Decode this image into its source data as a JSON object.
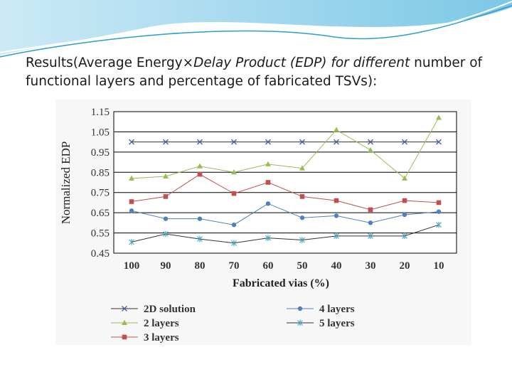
{
  "slide": {
    "title_part1": "Results(Average Energy×",
    "title_italic": "Delay Product (EDP) for different",
    "title_part2": " number of functional  layers and percentage of fabricated TSVs):"
  },
  "colors": {
    "header_light": "#cdeaf6",
    "header_mid": "#7cc8e6",
    "header_dark": "#1b8fbf"
  },
  "chart_data": {
    "type": "line",
    "xlabel": "Fabricated vias (%)",
    "ylabel": "Normalized EDP",
    "categories": [
      "100",
      "90",
      "80",
      "70",
      "60",
      "50",
      "40",
      "30",
      "20",
      "10"
    ],
    "ylim": [
      0.45,
      1.15
    ],
    "yticks": [
      "1.15",
      "1.05",
      "0.95",
      "0.85",
      "0.75",
      "0.65",
      "0.55",
      "0.45"
    ],
    "grid": true,
    "legend_position": "bottom",
    "series": [
      {
        "name": "2D solution",
        "color": "#4a5f9e",
        "marker": "x",
        "values": [
          1.0,
          1.0,
          1.0,
          1.0,
          1.0,
          1.0,
          1.0,
          1.0,
          1.0,
          1.0
        ]
      },
      {
        "name": "2 layers",
        "color": "#9bbb59",
        "marker": "triangle",
        "values": [
          0.82,
          0.83,
          0.88,
          0.85,
          0.89,
          0.87,
          1.06,
          0.96,
          0.82,
          1.12
        ]
      },
      {
        "name": "3 layers",
        "color": "#c0504d",
        "marker": "square",
        "values": [
          0.705,
          0.73,
          0.84,
          0.745,
          0.8,
          0.73,
          0.71,
          0.665,
          0.71,
          0.7
        ]
      },
      {
        "name": "4 layers",
        "color": "#4f81bd",
        "marker": "circle",
        "values": [
          0.66,
          0.62,
          0.62,
          0.59,
          0.695,
          0.625,
          0.635,
          0.6,
          0.64,
          0.655
        ]
      },
      {
        "name": "5 layers",
        "color": "#4bacc6",
        "marker": "asterisk",
        "values": [
          0.505,
          0.545,
          0.52,
          0.5,
          0.525,
          0.515,
          0.535,
          0.535,
          0.535,
          0.59
        ]
      }
    ]
  }
}
